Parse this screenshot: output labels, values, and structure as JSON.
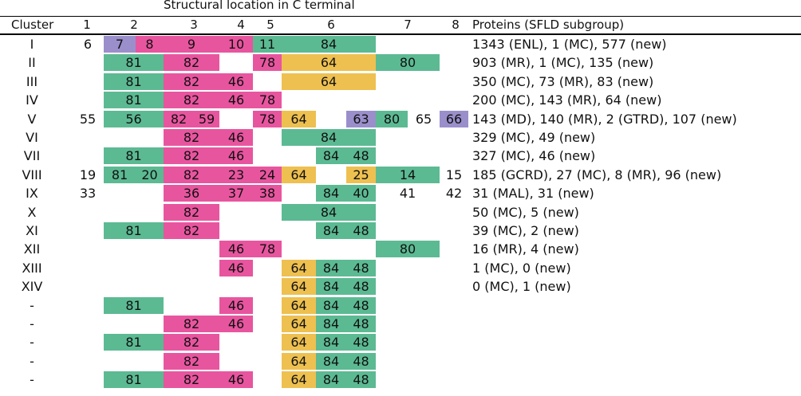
{
  "title": "Structural location in C terminal",
  "headers": {
    "cluster": "Cluster",
    "cols": [
      "1",
      "2",
      "3",
      "4",
      "5",
      "6",
      "7",
      "8"
    ],
    "proteins": "Proteins (SFLD subgroup)"
  },
  "colors": {
    "green": "#5cba93",
    "pink": "#e8559f",
    "yellow": "#eec050",
    "purple": "#9a8fcb"
  },
  "rows": [
    {
      "cluster": "I",
      "proteins": "1343 (ENL), 1 (MC), 577 (new)",
      "cells": [
        {
          "slot": "c1",
          "text": "6"
        },
        {
          "slot": "c2a",
          "text": "7",
          "color": "purple"
        },
        {
          "slot": "c2b",
          "text": "8",
          "color": "pink"
        },
        {
          "slot": "c3",
          "text": "9",
          "color": "pink"
        },
        {
          "slot": "c4",
          "text": "10",
          "color": "pink"
        },
        {
          "slot": "c5",
          "text": "11",
          "color": "green"
        },
        {
          "slot": "c6",
          "text": "84",
          "color": "green"
        }
      ]
    },
    {
      "cluster": "II",
      "proteins": "903 (MR), 1 (MC), 135 (new)",
      "cells": [
        {
          "slot": "c2",
          "text": "81",
          "color": "green"
        },
        {
          "slot": "c3",
          "text": "82",
          "color": "pink"
        },
        {
          "slot": "c5",
          "text": "78",
          "color": "pink"
        },
        {
          "slot": "c6",
          "text": "64",
          "color": "yellow"
        },
        {
          "slot": "c7",
          "text": "80",
          "color": "green"
        }
      ]
    },
    {
      "cluster": "III",
      "proteins": "350 (MC), 73 (MR), 83 (new)",
      "cells": [
        {
          "slot": "c2",
          "text": "81",
          "color": "green"
        },
        {
          "slot": "c3",
          "text": "82",
          "color": "pink"
        },
        {
          "slot": "c4",
          "text": "46",
          "color": "pink"
        },
        {
          "slot": "c6",
          "text": "64",
          "color": "yellow"
        }
      ]
    },
    {
      "cluster": "IV",
      "proteins": "200 (MC), 143 (MR), 64 (new)",
      "cells": [
        {
          "slot": "c2",
          "text": "81",
          "color": "green"
        },
        {
          "slot": "c3",
          "text": "82",
          "color": "pink"
        },
        {
          "slot": "c4",
          "text": "46",
          "color": "pink"
        },
        {
          "slot": "c5",
          "text": "78",
          "color": "pink"
        }
      ]
    },
    {
      "cluster": "V",
      "proteins": "143 (MD), 140 (MR), 2 (GTRD), 107 (new)",
      "cells": [
        {
          "slot": "c1",
          "text": "55"
        },
        {
          "slot": "c2",
          "text": "56",
          "color": "green"
        },
        {
          "slot": "c3a",
          "text": "82",
          "color": "pink"
        },
        {
          "slot": "c3b",
          "text": "59",
          "color": "pink"
        },
        {
          "slot": "c5",
          "text": "78",
          "color": "pink"
        },
        {
          "slot": "c6a",
          "text": "64",
          "color": "yellow"
        },
        {
          "slot": "c6c",
          "text": "63",
          "color": "purple"
        },
        {
          "slot": "c7a",
          "text": "80",
          "color": "green"
        },
        {
          "slot": "c7b",
          "text": "65"
        },
        {
          "slot": "c8",
          "text": "66",
          "color": "purple"
        }
      ]
    },
    {
      "cluster": "VI",
      "proteins": "329 (MC), 49 (new)",
      "cells": [
        {
          "slot": "c3",
          "text": "82",
          "color": "pink"
        },
        {
          "slot": "c4",
          "text": "46",
          "color": "pink"
        },
        {
          "slot": "c6",
          "text": "84",
          "color": "green"
        }
      ]
    },
    {
      "cluster": "VII",
      "proteins": "327 (MC), 46 (new)",
      "cells": [
        {
          "slot": "c2",
          "text": "81",
          "color": "green"
        },
        {
          "slot": "c3",
          "text": "82",
          "color": "pink"
        },
        {
          "slot": "c4",
          "text": "46",
          "color": "pink"
        },
        {
          "slot": "c6b",
          "text": "84",
          "color": "green"
        },
        {
          "slot": "c6c",
          "text": "48",
          "color": "green"
        }
      ]
    },
    {
      "cluster": "VIII",
      "proteins": "185 (GCRD), 27 (MC), 8 (MR), 96 (new)",
      "cells": [
        {
          "slot": "c1",
          "text": "19"
        },
        {
          "slot": "c2a",
          "text": "81",
          "color": "green"
        },
        {
          "slot": "c2b",
          "text": "20",
          "color": "green"
        },
        {
          "slot": "c3",
          "text": "82",
          "color": "pink"
        },
        {
          "slot": "c4",
          "text": "23",
          "color": "pink"
        },
        {
          "slot": "c5",
          "text": "24",
          "color": "pink"
        },
        {
          "slot": "c6a",
          "text": "64",
          "color": "yellow"
        },
        {
          "slot": "c6c",
          "text": "25",
          "color": "yellow"
        },
        {
          "slot": "c7",
          "text": "14",
          "color": "green"
        },
        {
          "slot": "c8",
          "text": "15"
        }
      ]
    },
    {
      "cluster": "IX",
      "proteins": "31 (MAL), 31 (new)",
      "cells": [
        {
          "slot": "c1",
          "text": "33"
        },
        {
          "slot": "c3",
          "text": "36",
          "color": "pink"
        },
        {
          "slot": "c4",
          "text": "37",
          "color": "pink"
        },
        {
          "slot": "c5",
          "text": "38",
          "color": "pink"
        },
        {
          "slot": "c6b",
          "text": "84",
          "color": "green"
        },
        {
          "slot": "c6c",
          "text": "40",
          "color": "green"
        },
        {
          "slot": "c7",
          "text": "41"
        },
        {
          "slot": "c8",
          "text": "42"
        }
      ]
    },
    {
      "cluster": "X",
      "proteins": "50 (MC), 5 (new)",
      "cells": [
        {
          "slot": "c3",
          "text": "82",
          "color": "pink"
        },
        {
          "slot": "c6",
          "text": "84",
          "color": "green"
        }
      ]
    },
    {
      "cluster": "XI",
      "proteins": "39 (MC), 2 (new)",
      "cells": [
        {
          "slot": "c2",
          "text": "81",
          "color": "green"
        },
        {
          "slot": "c3",
          "text": "82",
          "color": "pink"
        },
        {
          "slot": "c6b",
          "text": "84",
          "color": "green"
        },
        {
          "slot": "c6c",
          "text": "48",
          "color": "green"
        }
      ]
    },
    {
      "cluster": "XII",
      "proteins": "16 (MR), 4 (new)",
      "cells": [
        {
          "slot": "c4",
          "text": "46",
          "color": "pink"
        },
        {
          "slot": "c5",
          "text": "78",
          "color": "pink"
        },
        {
          "slot": "c7",
          "text": "80",
          "color": "green"
        }
      ]
    },
    {
      "cluster": "XIII",
      "proteins": "1 (MC), 0 (new)",
      "cells": [
        {
          "slot": "c4",
          "text": "46",
          "color": "pink"
        },
        {
          "slot": "c6a",
          "text": "64",
          "color": "yellow"
        },
        {
          "slot": "c6b",
          "text": "84",
          "color": "green"
        },
        {
          "slot": "c6c",
          "text": "48",
          "color": "green"
        }
      ]
    },
    {
      "cluster": "XIV",
      "proteins": "0 (MC), 1 (new)",
      "cells": [
        {
          "slot": "c6a",
          "text": "64",
          "color": "yellow"
        },
        {
          "slot": "c6b",
          "text": "84",
          "color": "green"
        },
        {
          "slot": "c6c",
          "text": "48",
          "color": "green"
        }
      ]
    },
    {
      "cluster": "-",
      "proteins": "",
      "cells": [
        {
          "slot": "c2",
          "text": "81",
          "color": "green"
        },
        {
          "slot": "c4",
          "text": "46",
          "color": "pink"
        },
        {
          "slot": "c6a",
          "text": "64",
          "color": "yellow"
        },
        {
          "slot": "c6b",
          "text": "84",
          "color": "green"
        },
        {
          "slot": "c6c",
          "text": "48",
          "color": "green"
        }
      ]
    },
    {
      "cluster": "-",
      "proteins": "",
      "cells": [
        {
          "slot": "c3",
          "text": "82",
          "color": "pink"
        },
        {
          "slot": "c4",
          "text": "46",
          "color": "pink"
        },
        {
          "slot": "c6a",
          "text": "64",
          "color": "yellow"
        },
        {
          "slot": "c6b",
          "text": "84",
          "color": "green"
        },
        {
          "slot": "c6c",
          "text": "48",
          "color": "green"
        }
      ]
    },
    {
      "cluster": "-",
      "proteins": "",
      "cells": [
        {
          "slot": "c2",
          "text": "81",
          "color": "green"
        },
        {
          "slot": "c3",
          "text": "82",
          "color": "pink"
        },
        {
          "slot": "c6a",
          "text": "64",
          "color": "yellow"
        },
        {
          "slot": "c6b",
          "text": "84",
          "color": "green"
        },
        {
          "slot": "c6c",
          "text": "48",
          "color": "green"
        }
      ]
    },
    {
      "cluster": "-",
      "proteins": "",
      "cells": [
        {
          "slot": "c3",
          "text": "82",
          "color": "pink"
        },
        {
          "slot": "c6a",
          "text": "64",
          "color": "yellow"
        },
        {
          "slot": "c6b",
          "text": "84",
          "color": "green"
        },
        {
          "slot": "c6c",
          "text": "48",
          "color": "green"
        }
      ]
    },
    {
      "cluster": "-",
      "proteins": "",
      "cells": [
        {
          "slot": "c2",
          "text": "81",
          "color": "green"
        },
        {
          "slot": "c3",
          "text": "82",
          "color": "pink"
        },
        {
          "slot": "c4",
          "text": "46",
          "color": "pink"
        },
        {
          "slot": "c6a",
          "text": "64",
          "color": "yellow"
        },
        {
          "slot": "c6b",
          "text": "84",
          "color": "green"
        },
        {
          "slot": "c6c",
          "text": "48",
          "color": "green"
        }
      ]
    }
  ]
}
